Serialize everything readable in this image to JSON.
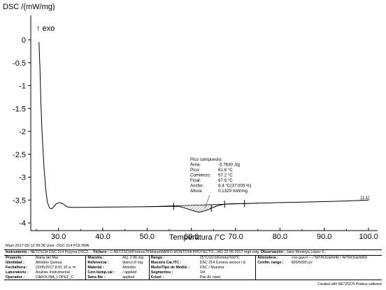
{
  "chart_data": {
    "type": "line",
    "ylabel": "DSC /(mW/mg)",
    "xlabel": "Temperatura /°C",
    "exo_label": "↑ exo",
    "xlim": [
      24,
      101
    ],
    "ylim": [
      -4,
      0.15
    ],
    "x_ticks": [
      30,
      40,
      50,
      60,
      70,
      80,
      90,
      100
    ],
    "x_tick_labels": [
      "30.0",
      "40.0",
      "50.0",
      "60.0",
      "70.0",
      "80.0",
      "90.0",
      "100.0"
    ],
    "y_ticks": [
      0,
      -0.5,
      -1,
      -1.5,
      -2,
      -2.5,
      -3,
      -3.5,
      -4
    ],
    "y_tick_labels": [
      "0",
      "-0.5",
      "-1",
      "-1.5",
      "-2",
      "-2.5",
      "-3",
      "-3.5",
      "-4"
    ],
    "series": [
      {
        "color": "#000000",
        "x": [
          25.6,
          25.8,
          26.0,
          26.3,
          26.7,
          27.1,
          27.5,
          28.0,
          28.5,
          29.0,
          29.5,
          30.0,
          30.5,
          31.0,
          31.5,
          32.0,
          33.0,
          35.0,
          40.0,
          45.0,
          50.0,
          55.0,
          56.0,
          57.2,
          58.0,
          59.0,
          60.0,
          61.0,
          61.8,
          62.5,
          63.5,
          64.5,
          65.5,
          66.5,
          67.5,
          68.5,
          70.0,
          72.0,
          75.0,
          80.0,
          85.0,
          90.0,
          95.0,
          100.0
        ],
        "y": [
          -0.05,
          -0.6,
          -1.3,
          -2.05,
          -2.75,
          -3.25,
          -3.55,
          -3.68,
          -3.69,
          -3.64,
          -3.58,
          -3.56,
          -3.56,
          -3.58,
          -3.62,
          -3.65,
          -3.66,
          -3.66,
          -3.655,
          -3.65,
          -3.645,
          -3.64,
          -3.64,
          -3.64,
          -3.66,
          -3.69,
          -3.72,
          -3.75,
          -3.765,
          -3.75,
          -3.72,
          -3.68,
          -3.64,
          -3.61,
          -3.59,
          -3.585,
          -3.58,
          -3.575,
          -3.57,
          -3.555,
          -3.545,
          -3.535,
          -3.52,
          -3.5
        ]
      }
    ],
    "peak_markers": [
      56.0,
      64.5,
      67.5,
      72.0
    ],
    "annotation": {
      "title": "Pico compuesto:",
      "rows": [
        {
          "label": "Área:",
          "value": "-5.7630 J/g"
        },
        {
          "label": "Pico:",
          "value": "61.8 °C"
        },
        {
          "label": "Comienzo:",
          "value": "57.2 °C"
        },
        {
          "label": "Final:",
          "value": "67.9 °C"
        },
        {
          "label": "Ancho:",
          "value": "8.4 °C(37.000 %)"
        },
        {
          "label": "Altura:",
          "value": "0.1329 mW/mg"
        }
      ]
    },
    "curve_label": "[1.1]"
  },
  "main_line": "Main   2017-05-12 09:36    User: DSC 214 POLYMA",
  "info": {
    "instrument_label": "Instrumento :",
    "instrument_value": "NETZSCH DSC 214 Polyma DSC2...",
    "file_label": "Fichero :",
    "file_value": "C:NETZSCH\\Proteus70\\Maria\\MARIO MONTOYA PROYECTO...\\AG 22-05-2017.mgb-edg",
    "obs_label": "Observación :",
    "obs_value": "Jairo Montoya López 2...",
    "rows": [
      [
        "Proyecto :",
        "María del Mar",
        "Muestra :",
        "AQ, 2.96 mg",
        "Rango :",
        "25°C/10.0(K/min)/100°C",
        "Atmósfera :",
        "<no gas>/--- / NITROGEN/40 / NITROGEN/60"
      ],
      [
        "Identidad :",
        "Almidón Quinua",
        "Referencia :",
        "blanco,6 mg",
        "Muestra Car./TC :",
        "DSC 214 Corona sensor / E",
        "Confm. range :",
        "600/5000 µV"
      ],
      [
        "Fecha/hora :",
        "22/05/2017 8:51:10 a. m.",
        "Material :",
        "Almidón",
        "Modo/Tipo de Medid. :",
        "DSC / Muestra",
        "",
        ""
      ],
      [
        "Laboratorio :",
        "Analisis Instrumental",
        "Corr./temp.cal :",
        "/ applied",
        "Segmentos :",
        "1/4",
        "",
        ""
      ],
      [
        "Operador :",
        "CAROLINA_LÓPEZ_C",
        "Sens.file :",
        "applied",
        "Crisol :",
        "Pan Al, open",
        "",
        ""
      ]
    ]
  },
  "footer_credit": "Created with NETZSCH Proteus software"
}
